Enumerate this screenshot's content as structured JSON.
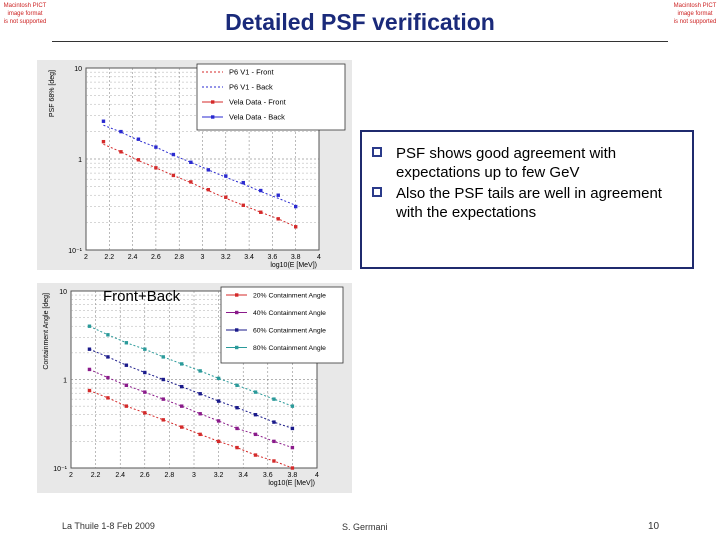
{
  "pict_notice": [
    "Macintosh PICT",
    "image format",
    "is not supported"
  ],
  "slide": {
    "title": "Detailed PSF verification",
    "bullets": [
      "PSF shows good agreement with expectations up to few GeV",
      "Also the PSF  tails are well in agreement with the expectations"
    ],
    "footer_left": "La Thuile 1-8 Feb 2009",
    "footer_center": "S. Germani",
    "page_number": "10"
  },
  "colors": {
    "title": "#1a2a7a",
    "red": "#d42a2a",
    "blue": "#2a2ad0",
    "navy": "#1a1a8a",
    "purple": "#8a1a8a",
    "teal": "#2a9a9a"
  },
  "chart_data": [
    {
      "type": "scatter",
      "ylabel": "PSF 68% [deg]",
      "xlabel": "log10(E [MeV])",
      "xlim": [
        2,
        4
      ],
      "ylim": [
        0.1,
        10
      ],
      "yscale": "log",
      "xticks": [
        "2",
        "2.2",
        "2.4",
        "2.6",
        "2.8",
        "3",
        "3.2",
        "3.4",
        "3.6",
        "3.8",
        "4"
      ],
      "yticks": [
        {
          "v": 10,
          "label": "10"
        },
        {
          "v": 1,
          "label": "1"
        },
        {
          "v": 0.1,
          "label": "10⁻¹"
        }
      ],
      "grid": true,
      "legend": "top-right",
      "series": [
        {
          "name": "P6 V1 - Front",
          "style": "dotted",
          "color": "#d42a2a",
          "x": [
            2.15,
            2.3,
            2.45,
            2.6,
            2.75,
            2.9,
            3.05,
            3.2,
            3.35,
            3.5,
            3.65,
            3.8
          ],
          "y": [
            1.45,
            1.2,
            0.96,
            0.8,
            0.66,
            0.55,
            0.45,
            0.37,
            0.31,
            0.26,
            0.22,
            0.18
          ]
        },
        {
          "name": "P6 V1 - Back",
          "style": "dotted",
          "color": "#2a2ad0",
          "x": [
            2.15,
            2.3,
            2.45,
            2.6,
            2.75,
            2.9,
            3.05,
            3.2,
            3.35,
            3.5,
            3.65,
            3.8
          ],
          "y": [
            2.35,
            1.98,
            1.6,
            1.35,
            1.1,
            0.92,
            0.76,
            0.63,
            0.53,
            0.44,
            0.37,
            0.31
          ]
        },
        {
          "name": "Vela Data - Front",
          "style": "marker",
          "color": "#d42a2a",
          "x": [
            2.15,
            2.3,
            2.45,
            2.6,
            2.75,
            2.9,
            3.05,
            3.2,
            3.35,
            3.5,
            3.65,
            3.8
          ],
          "y": [
            1.55,
            1.2,
            0.98,
            0.8,
            0.66,
            0.56,
            0.46,
            0.38,
            0.31,
            0.26,
            0.22,
            0.18
          ]
        },
        {
          "name": "Vela Data - Back",
          "style": "marker",
          "color": "#2a2ad0",
          "x": [
            2.15,
            2.3,
            2.45,
            2.6,
            2.75,
            2.9,
            3.05,
            3.2,
            3.35,
            3.5,
            3.65,
            3.8
          ],
          "y": [
            2.6,
            2.0,
            1.65,
            1.35,
            1.12,
            0.92,
            0.76,
            0.65,
            0.55,
            0.45,
            0.4,
            0.3
          ]
        }
      ]
    },
    {
      "type": "scatter",
      "title": "Front+Back",
      "ylabel": "Containment Angle [deg]",
      "xlabel": "log10(E [MeV])",
      "xlim": [
        2,
        4
      ],
      "ylim": [
        0.1,
        10
      ],
      "yscale": "log",
      "xticks": [
        "2",
        "2.2",
        "2.4",
        "2.6",
        "2.8",
        "3",
        "3.2",
        "3.4",
        "3.6",
        "3.8",
        "4"
      ],
      "yticks": [
        {
          "v": 10,
          "label": "10"
        },
        {
          "v": 1,
          "label": "1"
        },
        {
          "v": 0.1,
          "label": "10⁻¹"
        }
      ],
      "grid": true,
      "legend": "top-right",
      "series": [
        {
          "name": "20% Containment Angle",
          "color": "#d42a2a",
          "x": [
            2.15,
            2.3,
            2.45,
            2.6,
            2.75,
            2.9,
            3.05,
            3.2,
            3.35,
            3.5,
            3.65,
            3.8
          ],
          "y": [
            0.75,
            0.62,
            0.5,
            0.42,
            0.35,
            0.29,
            0.24,
            0.2,
            0.17,
            0.14,
            0.12,
            0.1
          ]
        },
        {
          "name": "40% Containment Angle",
          "color": "#8a1a8a",
          "x": [
            2.15,
            2.3,
            2.45,
            2.6,
            2.75,
            2.9,
            3.05,
            3.2,
            3.35,
            3.5,
            3.65,
            3.8
          ],
          "y": [
            1.3,
            1.05,
            0.86,
            0.72,
            0.6,
            0.5,
            0.41,
            0.34,
            0.28,
            0.24,
            0.2,
            0.17
          ]
        },
        {
          "name": "60% Containment Angle",
          "color": "#1a1a8a",
          "x": [
            2.15,
            2.3,
            2.45,
            2.6,
            2.75,
            2.9,
            3.05,
            3.2,
            3.35,
            3.5,
            3.65,
            3.8
          ],
          "y": [
            2.2,
            1.8,
            1.45,
            1.2,
            1.0,
            0.83,
            0.69,
            0.57,
            0.48,
            0.4,
            0.33,
            0.28
          ]
        },
        {
          "name": "80% Containment Angle",
          "color": "#2a9a9a",
          "x": [
            2.15,
            2.3,
            2.45,
            2.6,
            2.75,
            2.9,
            3.05,
            3.2,
            3.35,
            3.5,
            3.65,
            3.8
          ],
          "y": [
            4.0,
            3.2,
            2.6,
            2.2,
            1.8,
            1.5,
            1.25,
            1.03,
            0.86,
            0.72,
            0.6,
            0.5
          ]
        }
      ]
    }
  ]
}
